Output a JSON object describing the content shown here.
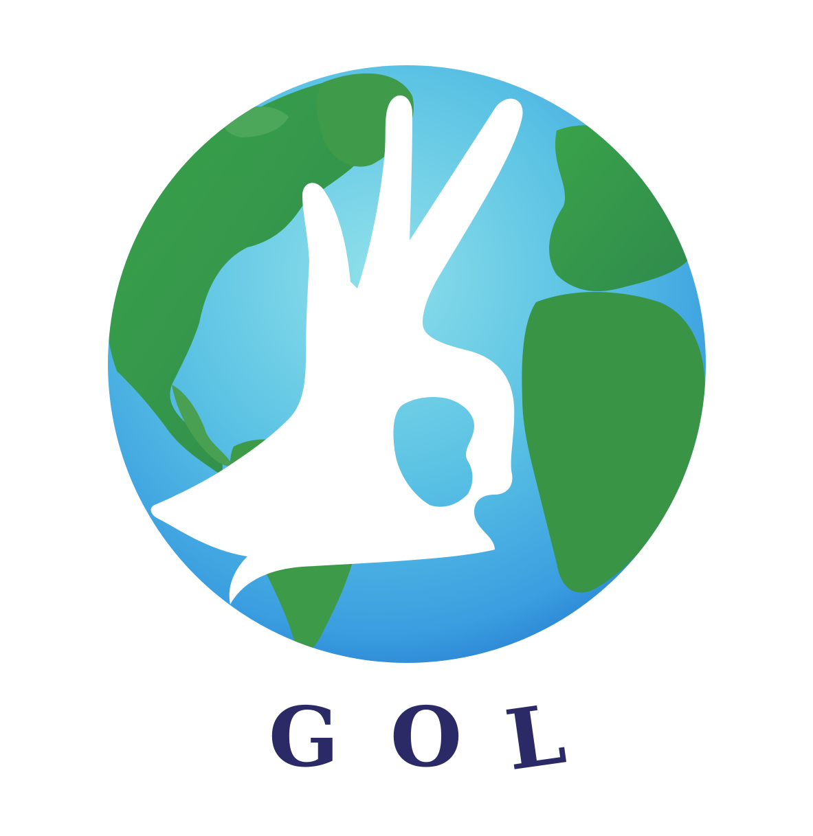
{
  "brand": {
    "name": "GOL",
    "letters": [
      "G",
      "O",
      "L"
    ],
    "text_color": "#2b2a66"
  },
  "icons": {
    "globe": "globe-icon",
    "hand": "ok-hand-gesture-icon"
  },
  "colors": {
    "ocean_light": "#7fd8e6",
    "ocean_mid": "#3fa9e0",
    "ocean_deep": "#1f6fc9",
    "land_light": "#3fa34a",
    "land_dark": "#2f7f45",
    "hand": "#ffffff",
    "background": "#ffffff"
  }
}
